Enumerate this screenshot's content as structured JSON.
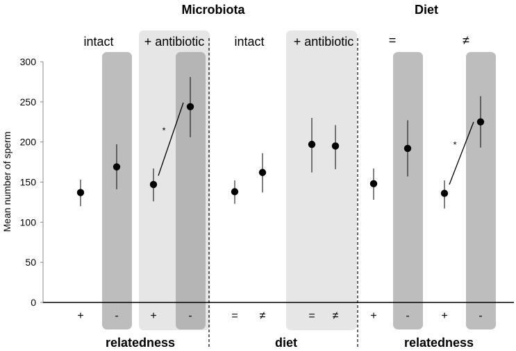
{
  "chart_data": {
    "type": "scatter",
    "ylabel": "Mean number of sperm",
    "ylim": [
      0,
      300
    ],
    "yticks": [
      0,
      50,
      100,
      150,
      200,
      250,
      300
    ],
    "headings": {
      "microbiota": "Microbiota",
      "diet": "Diet"
    },
    "group_labels": {
      "intact_1": "intact",
      "antibiotic_1": "+ antibiotic",
      "intact_2": "intact",
      "antibiotic_2": "+ antibiotic",
      "equal": "=",
      "not_equal": "≠"
    },
    "factor_labels": {
      "left": "relatedness",
      "middle": "diet",
      "right": "relatedness"
    },
    "categories": [
      "+",
      "-",
      "+",
      "-",
      "=",
      "≠",
      "=",
      "≠",
      "+",
      "-",
      "+",
      "-"
    ],
    "values": [
      137,
      169,
      147,
      244,
      138,
      162,
      197,
      195,
      148,
      192,
      136,
      225
    ],
    "error_low": [
      120,
      141,
      126,
      206,
      123,
      137,
      162,
      166,
      128,
      157,
      117,
      193
    ],
    "error_high": [
      153,
      197,
      167,
      281,
      152,
      186,
      230,
      221,
      167,
      227,
      152,
      257
    ],
    "significance": [
      {
        "from": 2,
        "to": 3,
        "label": "*"
      },
      {
        "from": 10,
        "to": 11,
        "label": "*"
      }
    ]
  }
}
